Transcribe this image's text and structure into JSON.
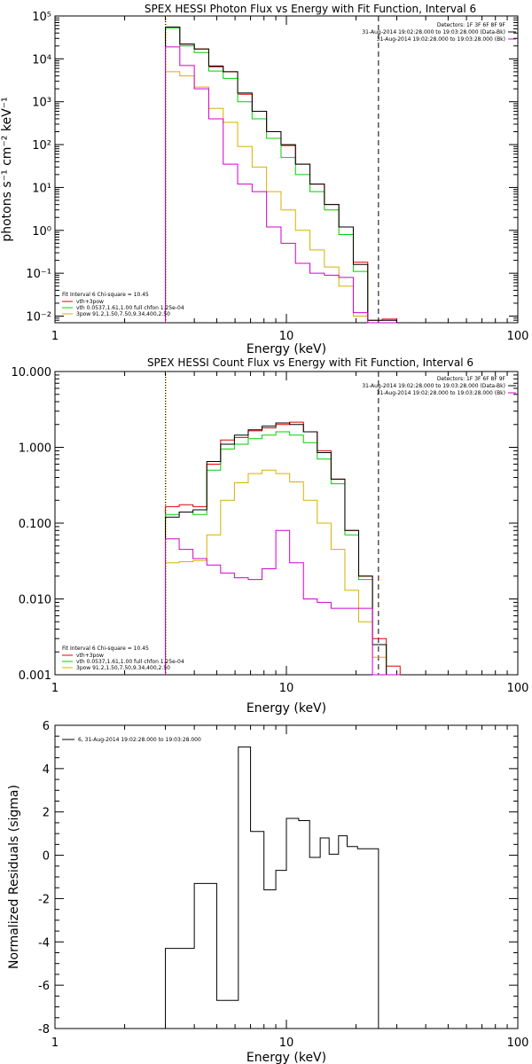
{
  "chart_data": [
    {
      "type": "line",
      "title": "SPEX HESSI Photon Flux vs Energy with Fit Function, Interval 6",
      "xlabel": "Energy (keV)",
      "ylabel": "photons s⁻¹ cm⁻² keV⁻¹",
      "xscale": "log",
      "yscale": "log",
      "xlim": [
        1,
        100
      ],
      "ylim": [
        0.007,
        100000
      ],
      "x_tick_labels": [
        "1",
        "10",
        "100"
      ],
      "y_tick_labels": [
        "10⁻²",
        "10⁻¹",
        "10⁰",
        "10¹",
        "10²",
        "10³",
        "10⁴",
        "10⁵"
      ],
      "top_right_text": [
        {
          "text": "Detectors: 1F 3F 6F 8F 9F",
          "color": "#000000"
        },
        {
          "text": "31-Aug-2014 19:02:28.000 to 19:03:28.000 (Data-Bk)",
          "color": "#000000"
        },
        {
          "text": "31-Aug-2014 19:02:28.000 to 19:03:28.000 (Bk)",
          "color": "#d000d0"
        }
      ],
      "legend_position": "bottom-left",
      "legend_header": "Fit Interval 6   Chi-square = 10.45",
      "series": [
        {
          "name": "vth+3pow",
          "color": "#e00000",
          "legend_label": "vth+3pow",
          "values": [
            55000,
            22000,
            17000,
            6500,
            5000,
            1500,
            600,
            200,
            95,
            35,
            12,
            4,
            1.2,
            0.18,
            0.008,
            0.0085
          ]
        },
        {
          "name": "vth",
          "color": "#00d000",
          "legend_label": "vth 0.0537,1.61,1.00   full chfon 1.25e-04",
          "values": [
            52000,
            20000,
            14000,
            5200,
            3500,
            1000,
            400,
            140,
            50,
            20,
            8,
            3,
            0.8,
            0.11,
            0.0065,
            0.0065
          ]
        },
        {
          "name": "3pow",
          "color": "#d8b000",
          "legend_label": "3pow 91.2,1.50,7.50,9.34,400,2.50",
          "values": [
            5000,
            4000,
            2200,
            700,
            330,
            90,
            30,
            8,
            3,
            1,
            0.35,
            0.14,
            0.05,
            0.01,
            0.0063,
            0.0062
          ]
        },
        {
          "name": "Data-Bk",
          "color": "#000000",
          "legend_label": "",
          "values": [
            55000,
            22000,
            17000,
            6800,
            5000,
            1600,
            600,
            200,
            100,
            35,
            12,
            4,
            1.2,
            0.16,
            0.008,
            0.008
          ]
        },
        {
          "name": "Bk",
          "color": "#d000d0",
          "legend_label": "",
          "values": [
            19000,
            7000,
            2000,
            400,
            35,
            12,
            8,
            1.2,
            0.5,
            0.17,
            0.1,
            0.09,
            0.08,
            0.012,
            0.0062,
            0.0062
          ]
        }
      ],
      "vlines": [
        {
          "x": 3.0,
          "style": "dotted",
          "color": "#000000"
        },
        {
          "x": 3.0,
          "style": "dotted",
          "color": "#d8b000"
        },
        {
          "x": 25.0,
          "style": "dashed",
          "color": "#000000"
        }
      ]
    },
    {
      "type": "line",
      "title": "SPEX HESSI Count Flux vs Energy with Fit Function, Interval 6",
      "xlabel": "Energy (keV)",
      "ylabel": "",
      "xscale": "log",
      "yscale": "log",
      "xlim": [
        1,
        100
      ],
      "ylim": [
        0.001,
        10
      ],
      "x_tick_labels": [
        "1",
        "10",
        "100"
      ],
      "y_tick_labels": [
        "0.001",
        "0.010",
        "0.100",
        "1.000",
        "10.000"
      ],
      "top_right_text": [
        {
          "text": "Detectors: 1F 3F 6F 8F 9F",
          "color": "#000000"
        },
        {
          "text": "31-Aug-2014 19:02:28.000 to 19:03:28.000 (Data-Bk)",
          "color": "#000000"
        },
        {
          "text": "31-Aug-2014 19:02:28.000 to 19:03:28.000 (Bk)",
          "color": "#d000d0"
        }
      ],
      "legend_position": "bottom-left",
      "legend_header": "Fit Interval 6   Chi-square = 10.45",
      "series": [
        {
          "name": "vth+3pow",
          "color": "#e00000",
          "legend_label": "vth+3pow",
          "values": [
            0.165,
            0.175,
            0.165,
            0.6,
            1.25,
            1.35,
            1.65,
            1.8,
            2.0,
            2.15,
            1.6,
            0.9,
            0.38,
            0.08,
            0.02,
            0.003,
            0.0013
          ]
        },
        {
          "name": "vth",
          "color": "#00d000",
          "legend_label": "vth 0.0537,1.61,1.00   full chfon 1.25e-04",
          "values": [
            0.13,
            0.14,
            0.13,
            0.5,
            0.95,
            1.1,
            1.3,
            1.45,
            1.6,
            1.45,
            1.15,
            0.7,
            0.33,
            0.07,
            0.018,
            0.0025,
            0.001
          ]
        },
        {
          "name": "3pow",
          "color": "#d8b000",
          "legend_label": "3pow 91.2,1.50,7.50,9.34,400,2.50",
          "values": [
            0.03,
            0.031,
            0.032,
            0.07,
            0.2,
            0.34,
            0.45,
            0.5,
            0.45,
            0.35,
            0.2,
            0.1,
            0.045,
            0.013,
            0.005,
            0.0017,
            0.001
          ]
        },
        {
          "name": "Data-Bk",
          "color": "#000000",
          "legend_label": "",
          "values": [
            0.12,
            0.14,
            0.15,
            0.65,
            1.1,
            1.45,
            1.7,
            1.9,
            2.1,
            2.0,
            1.6,
            0.85,
            0.38,
            0.08,
            0.02,
            0.0025,
            0.001
          ]
        },
        {
          "name": "Bk",
          "color": "#d000d0",
          "legend_label": "",
          "values": [
            0.062,
            0.045,
            0.034,
            0.028,
            0.022,
            0.019,
            0.018,
            0.025,
            0.08,
            0.03,
            0.01,
            0.009,
            0.0075,
            0.0075,
            0.0075,
            0.001,
            0.001
          ]
        }
      ],
      "vlines": [
        {
          "x": 3.0,
          "style": "dotted",
          "color": "#000000"
        },
        {
          "x": 3.0,
          "style": "dotted",
          "color": "#d8b000"
        },
        {
          "x": 25.0,
          "style": "dashed",
          "color": "#000000"
        }
      ]
    },
    {
      "type": "line",
      "title": "",
      "xlabel": "Energy (keV)",
      "ylabel": "Normalized Residuals (sigma)",
      "xscale": "log",
      "yscale": "linear",
      "xlim": [
        1,
        100
      ],
      "ylim": [
        -8,
        6
      ],
      "x_tick_labels": [
        "1",
        "10",
        "100"
      ],
      "y_tick_labels": [
        "-8",
        "-6",
        "-4",
        "-2",
        "0",
        "2",
        "4",
        "6"
      ],
      "legend_position": "top-left",
      "legend_header": "6, 31-Aug-2014 19:02:28.000 to 19:03:28.000",
      "series": [
        {
          "name": "residuals",
          "color": "#000000",
          "values": [
            -4.3,
            -1.3,
            -6.7,
            5.0,
            1.1,
            -1.6,
            -0.7,
            1.7,
            1.6,
            -0.1,
            0.8,
            0.05,
            0.9,
            0.4,
            0.3
          ]
        }
      ]
    }
  ]
}
